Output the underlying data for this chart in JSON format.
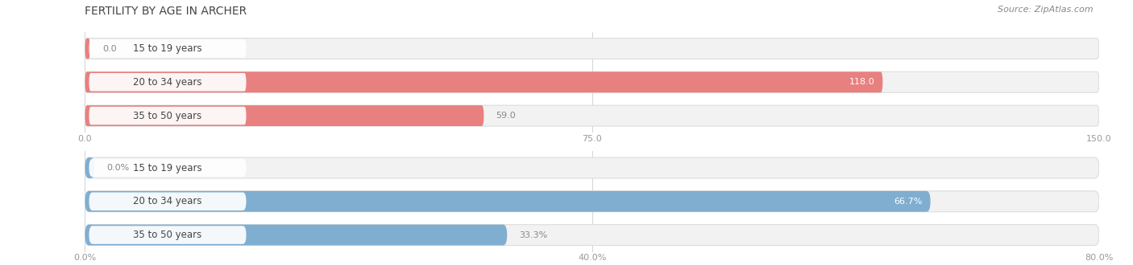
{
  "title": "FERTILITY BY AGE IN ARCHER",
  "source": "Source: ZipAtlas.com",
  "top_chart": {
    "categories": [
      "15 to 19 years",
      "20 to 34 years",
      "35 to 50 years"
    ],
    "values": [
      0.0,
      118.0,
      59.0
    ],
    "value_labels": [
      "0.0",
      "118.0",
      "59.0"
    ],
    "x_max": 150.0,
    "x_ticks": [
      0.0,
      75.0,
      150.0
    ],
    "x_tick_labels": [
      "0.0",
      "75.0",
      "150.0"
    ],
    "bar_color": "#e88080",
    "bar_bg_color": "#f2f2f2",
    "bar_border_color": "#dddddd"
  },
  "bottom_chart": {
    "categories": [
      "15 to 19 years",
      "20 to 34 years",
      "35 to 50 years"
    ],
    "values": [
      0.0,
      66.7,
      33.3
    ],
    "value_labels": [
      "0.0%",
      "66.7%",
      "33.3%"
    ],
    "x_max": 80.0,
    "x_ticks": [
      0.0,
      40.0,
      80.0
    ],
    "x_tick_labels": [
      "0.0%",
      "40.0%",
      "80.0%"
    ],
    "bar_color": "#80aed0",
    "bar_bg_color": "#f2f2f2",
    "bar_border_color": "#dddddd"
  },
  "background_color": "#ffffff",
  "title_fontsize": 10,
  "source_fontsize": 8,
  "tick_fontsize": 8,
  "label_fontsize": 8,
  "category_fontsize": 8.5,
  "bar_height": 0.62,
  "bar_gap": 0.38
}
